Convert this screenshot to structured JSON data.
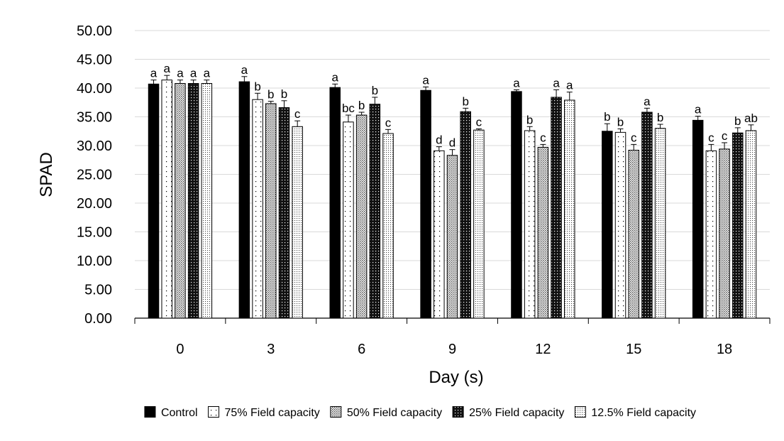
{
  "chart_data": {
    "type": "bar",
    "xlabel": "Day (s)",
    "ylabel": "SPAD",
    "ylim": [
      0,
      50
    ],
    "yticks": [
      "0.00",
      "5.00",
      "10.00",
      "15.00",
      "20.00",
      "25.00",
      "30.00",
      "35.00",
      "40.00",
      "45.00",
      "50.00"
    ],
    "categories": [
      "0",
      "3",
      "6",
      "9",
      "12",
      "15",
      "18"
    ],
    "grid": "horizontal",
    "legend_position": "bottom",
    "series": [
      {
        "name": "Control",
        "pattern": "solid-black",
        "values": [
          40.7,
          41.1,
          40.1,
          39.6,
          39.4,
          32.5,
          34.4
        ],
        "errors": [
          0.7,
          0.9,
          0.6,
          0.6,
          0.3,
          1.3,
          0.7
        ],
        "letters": [
          "a",
          "a",
          "a",
          "a",
          "a",
          "b",
          "a"
        ]
      },
      {
        "name": "75% Field capacity",
        "pattern": "sparse-dots",
        "values": [
          41.4,
          38.0,
          34.1,
          29.1,
          32.6,
          32.3,
          29.1
        ],
        "errors": [
          0.8,
          1.1,
          1.2,
          0.7,
          0.7,
          0.6,
          1.1
        ],
        "letters": [
          "a",
          "b",
          "bc",
          "d",
          "b",
          "b",
          "c"
        ]
      },
      {
        "name": "50% Field capacity",
        "pattern": "dense-grey-dots",
        "values": [
          40.8,
          37.3,
          35.3,
          28.3,
          29.7,
          29.2,
          29.4
        ],
        "errors": [
          0.6,
          0.4,
          0.5,
          1.0,
          0.5,
          1.0,
          1.1
        ],
        "letters": [
          "a",
          "b",
          "b",
          "d",
          "c",
          "c",
          "c"
        ]
      },
      {
        "name": "25% Field capacity",
        "pattern": "black-with-white-dots",
        "values": [
          40.8,
          36.6,
          37.2,
          35.9,
          38.4,
          35.8,
          32.2
        ],
        "errors": [
          0.6,
          1.2,
          1.2,
          0.6,
          1.3,
          0.7,
          0.9
        ],
        "letters": [
          "a",
          "b",
          "b",
          "b",
          "a",
          "a",
          "b"
        ]
      },
      {
        "name": "12.5% Field capacity",
        "pattern": "medium-dots",
        "values": [
          40.8,
          33.3,
          32.1,
          32.7,
          37.9,
          33.0,
          32.6
        ],
        "errors": [
          0.6,
          1.0,
          0.7,
          0.2,
          1.4,
          0.7,
          1.0
        ],
        "letters": [
          "a",
          "c",
          "c",
          "c",
          "a",
          "b",
          "ab"
        ]
      }
    ]
  }
}
